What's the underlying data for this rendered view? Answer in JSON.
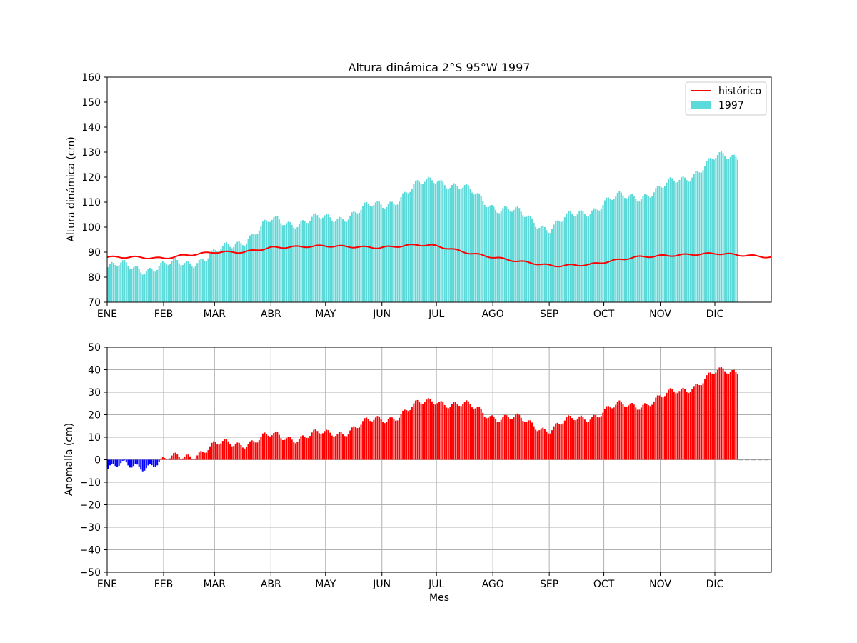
{
  "chart_data": [
    {
      "type": "bar",
      "title": "Altura dinámica 2°S 95°W 1997",
      "xlabel": "",
      "ylabel": "Altura dinámica (cm)",
      "ylim": [
        70,
        160
      ],
      "xlim_days": [
        0,
        365
      ],
      "yticks": [
        70,
        80,
        90,
        100,
        110,
        120,
        130,
        140,
        150,
        160
      ],
      "month_ticks": [
        "ENE",
        "FEB",
        "MAR",
        "ABR",
        "MAY",
        "JUN",
        "JUL",
        "AGO",
        "SEP",
        "OCT",
        "NOV",
        "DIC"
      ],
      "grid": false,
      "legend_position": "top-right",
      "legend": [
        {
          "label": "histórico",
          "kind": "line"
        },
        {
          "label": "1997",
          "kind": "bar"
        }
      ],
      "colors": {
        "bars": "#5cd9d9",
        "line": "#ff0000"
      },
      "series": [
        {
          "name": "1997",
          "kind": "bar",
          "x_days": [
            0,
            31,
            59,
            90,
            120,
            151,
            181,
            212,
            243,
            273,
            304,
            334,
            346
          ],
          "values": [
            84,
            84,
            89,
            102,
            103,
            109,
            120,
            109,
            100,
            110,
            115,
            127,
            129
          ]
        },
        {
          "name": "histórico",
          "kind": "line",
          "x_days": [
            0,
            15,
            31,
            40,
            59,
            75,
            90,
            120,
            150,
            171,
            181,
            200,
            220,
            245,
            265,
            290,
            304,
            335,
            365
          ],
          "values": [
            88,
            88,
            87.5,
            88.5,
            90,
            90,
            91.8,
            92.5,
            91.8,
            93,
            92.5,
            89.5,
            87,
            84.5,
            85,
            88,
            88.5,
            89.5,
            88
          ]
        }
      ]
    },
    {
      "type": "bar",
      "title": "",
      "xlabel": "Mes",
      "ylabel": "Anomalía (cm)",
      "ylim": [
        -50,
        50
      ],
      "xlim_days": [
        0,
        365
      ],
      "yticks": [
        -50,
        -40,
        -30,
        -20,
        -10,
        0,
        10,
        20,
        30,
        40,
        50
      ],
      "month_ticks": [
        "ENE",
        "FEB",
        "MAR",
        "ABR",
        "MAY",
        "JUN",
        "JUL",
        "AGO",
        "SEP",
        "OCT",
        "NOV",
        "DIC"
      ],
      "grid": true,
      "colors": {
        "positive": "#ff0000",
        "negative": "#0000ff",
        "zero_line": "#999999"
      },
      "series": [
        {
          "name": "",
          "kind": "bar",
          "x_days": [
            0,
            31,
            59,
            90,
            120,
            151,
            181,
            212,
            243,
            273,
            304,
            334,
            346
          ],
          "values": [
            -4,
            -1,
            6,
            10,
            11,
            18,
            27,
            20,
            14,
            22,
            27,
            38,
            40
          ]
        }
      ]
    }
  ]
}
